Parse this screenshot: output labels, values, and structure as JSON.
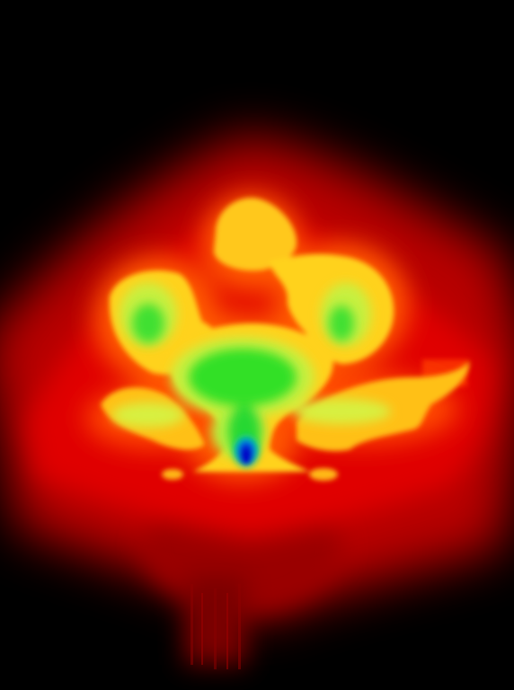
{
  "image": {
    "kind": "false-color heat map",
    "colors": {
      "background": "#000000",
      "outer_glow": "#b00000",
      "mid_red": "#e00000",
      "orange": "#ff6a00",
      "yellow": "#ffd21a",
      "yellow_green": "#c8f040",
      "green": "#2fe02a",
      "cyan": "#00b0c0",
      "blue": "#0018d8"
    }
  }
}
